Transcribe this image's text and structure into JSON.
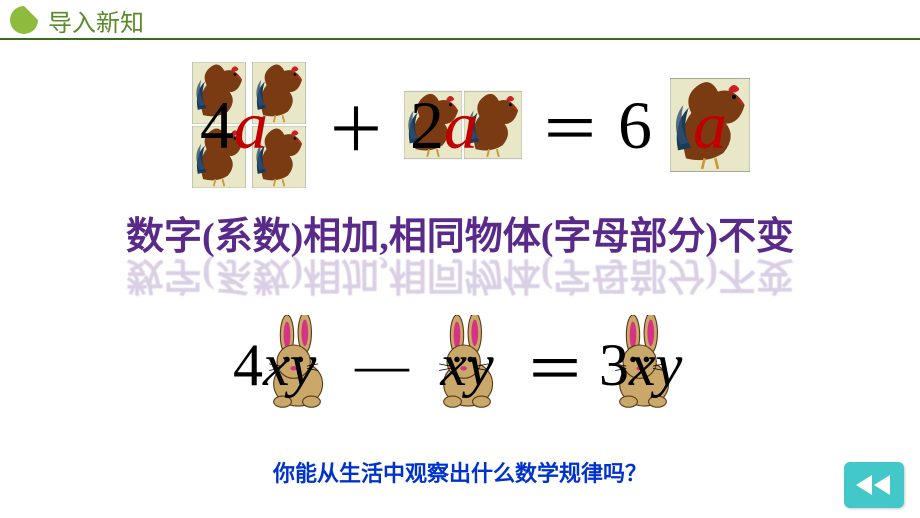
{
  "header": {
    "title": "导入新知",
    "title_color": "#5a8a2a",
    "icon_color": "#8dbb3e",
    "line_color": "#3a6a1a"
  },
  "equation1": {
    "term1": {
      "coef": "4",
      "var": "a",
      "icon_count": 4
    },
    "op1": "＋",
    "term2": {
      "coef": "2",
      "var": "a",
      "icon_count": 2
    },
    "op2": "＝",
    "result": {
      "coef": "6",
      "var": "a",
      "icon_count": 1
    },
    "coef_color": "#000000",
    "var_color": "#c00000",
    "font_size": 68
  },
  "rule": {
    "text": "数字(系数)相加,相同物体(字母部分)不变",
    "color": "#5a2a8a",
    "font_size": 38
  },
  "equation2": {
    "term1": {
      "coef": "4",
      "var": "xy"
    },
    "op1": "—",
    "term2": {
      "coef": "",
      "var": "xy"
    },
    "op2": "＝",
    "result": {
      "coef": "3",
      "var": "xy"
    },
    "text_color": "#000000",
    "font_size": 60
  },
  "question": {
    "text": "你能从生活中观察出什么数学规律吗？",
    "color": "#0033cc",
    "font_size": 22
  },
  "back_button": {
    "bg_color": "#42c8c8",
    "arrow_color": "#ffffff"
  },
  "icons": {
    "rooster": {
      "body_color": "#7a3a12",
      "tail_color": "#1a3a5a",
      "comb_color": "#cc2020",
      "leg_color": "#cc9933",
      "bg_color": "#e8e8c8"
    },
    "rabbit": {
      "body_color": "#c9a86a",
      "ear_inner": "#d63384",
      "bg_color": "#e8e8c8"
    }
  }
}
